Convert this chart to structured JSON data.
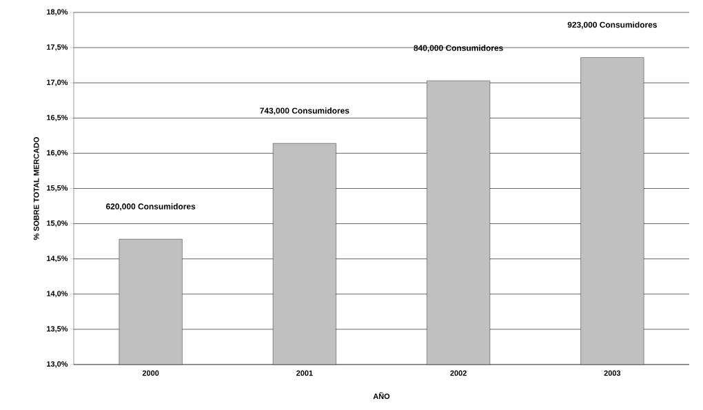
{
  "chart_data": {
    "type": "bar",
    "xlabel": "AÑO",
    "ylabel": "% SOBRE TOTAL MERCADO",
    "categories": [
      "2000",
      "2001",
      "2002",
      "2003"
    ],
    "values": [
      14.78,
      16.14,
      17.03,
      17.36
    ],
    "color": "#c0c0c0",
    "ylim": [
      13,
      18
    ],
    "yticks": [
      {
        "value": 13,
        "label": "13,0%"
      },
      {
        "value": 13.5,
        "label": "13,5%"
      },
      {
        "value": 14,
        "label": "14,0%"
      },
      {
        "value": 14.5,
        "label": "14,5%"
      },
      {
        "value": 15,
        "label": "15,0%"
      },
      {
        "value": 15.5,
        "label": "15,5%"
      },
      {
        "value": 16,
        "label": "16,0%"
      },
      {
        "value": 16.5,
        "label": "16,5%"
      },
      {
        "value": 17,
        "label": "17,0%"
      },
      {
        "value": 17.5,
        "label": "17,5%"
      },
      {
        "value": 18,
        "label": "18,0%"
      }
    ],
    "grid": "y",
    "annotations": [
      "620,000 Consumidores",
      "743,000 Consumidores",
      "840,000 Consumidores",
      "923,000 Consumidores"
    ]
  }
}
